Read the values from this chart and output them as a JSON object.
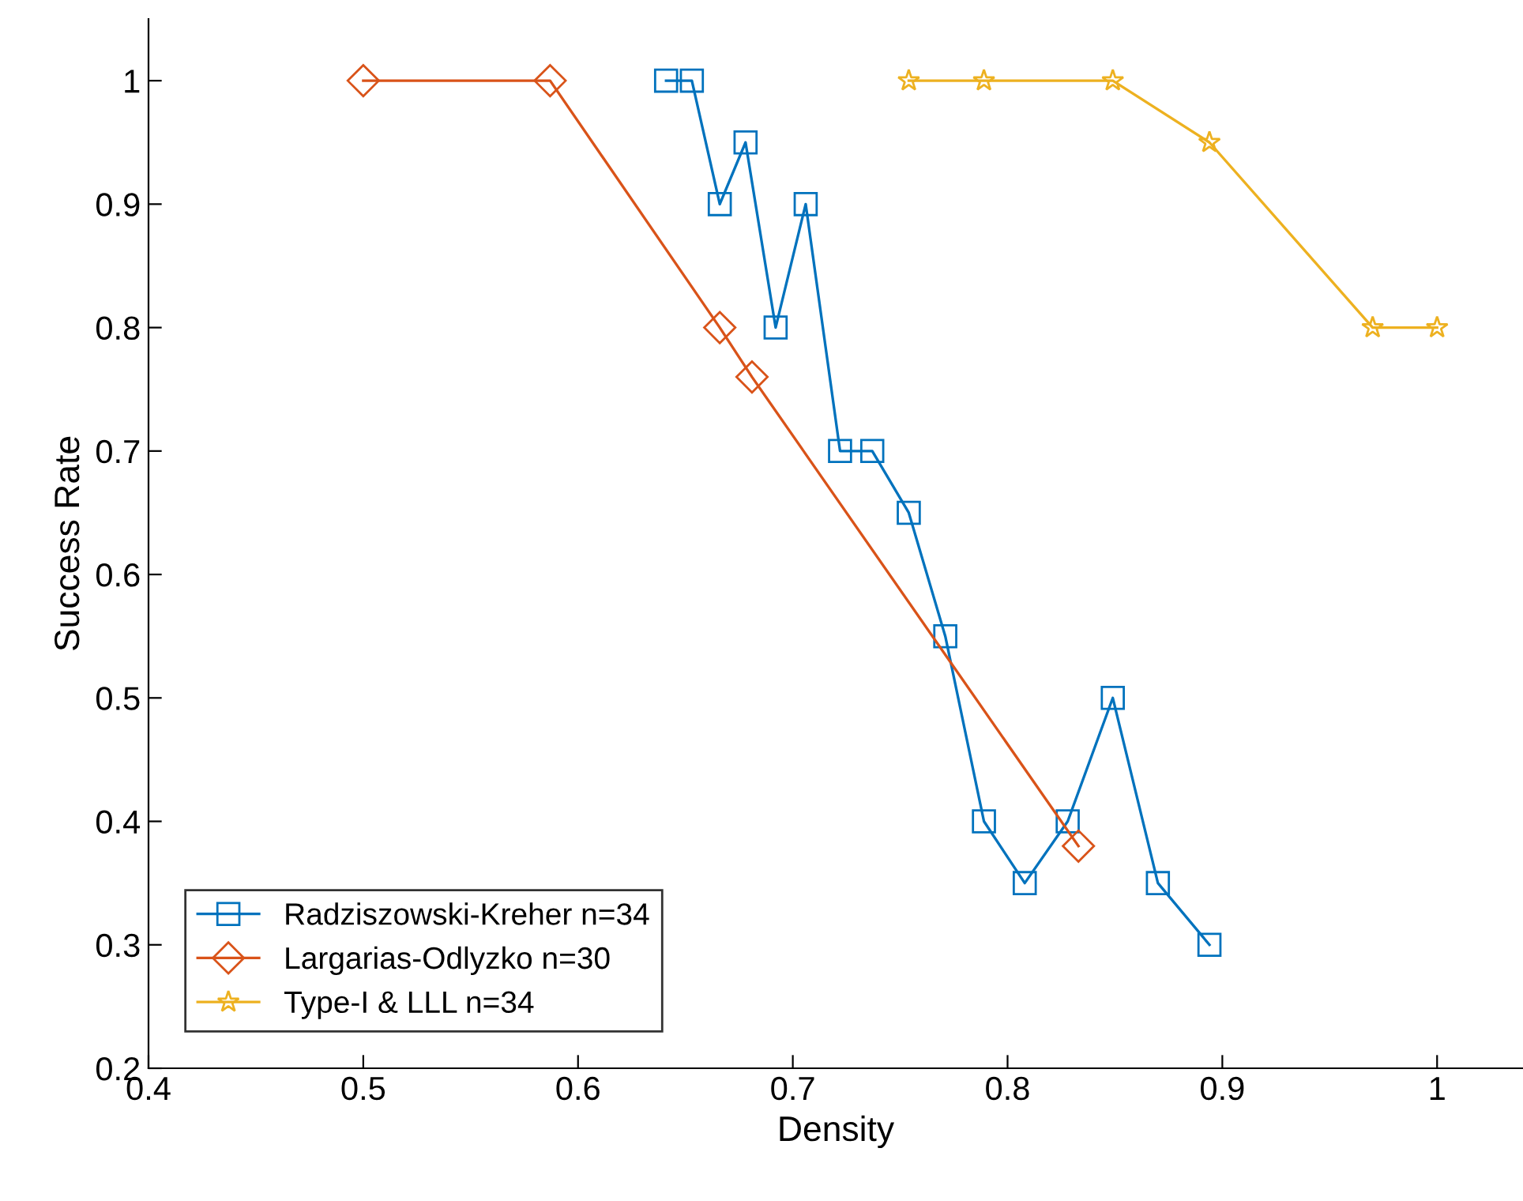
{
  "chart_data": {
    "type": "line",
    "xlabel": "Density",
    "ylabel": "Success Rate",
    "xlim": [
      0.4,
      1.04
    ],
    "ylim": [
      0.2,
      1.05
    ],
    "xticks": [
      0.4,
      0.5,
      0.6,
      0.7,
      0.8,
      0.9,
      1
    ],
    "yticks": [
      0.2,
      0.3,
      0.4,
      0.5,
      0.6,
      0.7,
      0.8,
      0.9,
      1
    ],
    "grid": false,
    "legend": "bottom left",
    "series": [
      {
        "name": "Radziszowski-Kreher n=34",
        "color": "#0072bd",
        "marker": "square",
        "x": [
          0.641,
          0.653,
          0.666,
          0.678,
          0.692,
          0.706,
          0.722,
          0.737,
          0.754,
          0.771,
          0.789,
          0.808,
          0.828,
          0.849,
          0.87,
          0.894
        ],
        "values": [
          1,
          1,
          0.9,
          0.95,
          0.8,
          0.9,
          0.7,
          0.7,
          0.65,
          0.55,
          0.4,
          0.35,
          0.4,
          0.5,
          0.35,
          0.3
        ]
      },
      {
        "name": "Largarias-Odlyzko n=30",
        "color": "#d95319",
        "marker": "diamond",
        "x": [
          0.5,
          0.587,
          0.666,
          0.681,
          0.833
        ],
        "values": [
          1,
          1,
          0.8,
          0.76,
          0.38
        ]
      },
      {
        "name": "Type-I & LLL n=34",
        "color": "#edb120",
        "marker": "star",
        "x": [
          0.754,
          0.789,
          0.849,
          0.894,
          0.97,
          1.0
        ],
        "values": [
          1,
          1,
          1,
          0.95,
          0.8,
          0.8
        ]
      }
    ]
  }
}
